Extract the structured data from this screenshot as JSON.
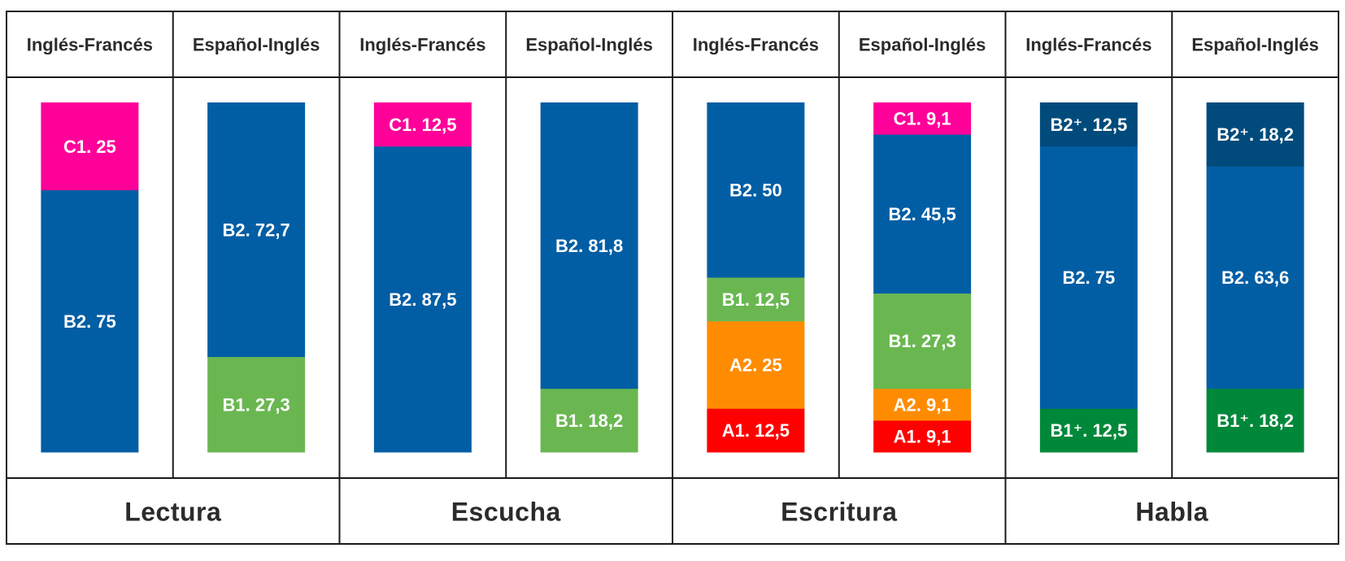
{
  "chart_data": {
    "type": "bar",
    "stacked": true,
    "unit": "%",
    "groups": [
      {
        "name": "Lectura",
        "bars": [
          {
            "name": "Inglés-Francés",
            "segments": [
              {
                "level": "B2",
                "value": 75,
                "label": "B2. 75"
              },
              {
                "level": "C1",
                "value": 25,
                "label": "C1. 25"
              }
            ]
          },
          {
            "name": "Español-Inglés",
            "segments": [
              {
                "level": "B1",
                "value": 27.3,
                "label": "B1. 27,3"
              },
              {
                "level": "B2",
                "value": 72.7,
                "label": "B2. 72,7"
              }
            ]
          }
        ]
      },
      {
        "name": "Escucha",
        "bars": [
          {
            "name": "Inglés-Francés",
            "segments": [
              {
                "level": "B2",
                "value": 87.5,
                "label": "B2. 87,5"
              },
              {
                "level": "C1",
                "value": 12.5,
                "label": "C1. 12,5"
              }
            ]
          },
          {
            "name": "Español-Inglés",
            "segments": [
              {
                "level": "B1",
                "value": 18.2,
                "label": "B1. 18,2"
              },
              {
                "level": "B2",
                "value": 81.8,
                "label": "B2. 81,8"
              }
            ]
          }
        ]
      },
      {
        "name": "Escritura",
        "bars": [
          {
            "name": "Inglés-Francés",
            "segments": [
              {
                "level": "A1",
                "value": 12.5,
                "label": "A1. 12,5"
              },
              {
                "level": "A2",
                "value": 25,
                "label": "A2. 25"
              },
              {
                "level": "B1",
                "value": 12.5,
                "label": "B1. 12,5"
              },
              {
                "level": "B2",
                "value": 50,
                "label": "B2. 50"
              }
            ]
          },
          {
            "name": "Español-Inglés",
            "segments": [
              {
                "level": "A1",
                "value": 9.1,
                "label": "A1. 9,1"
              },
              {
                "level": "A2",
                "value": 9.1,
                "label": "A2. 9,1"
              },
              {
                "level": "B1",
                "value": 27.3,
                "label": "B1. 27,3"
              },
              {
                "level": "B2",
                "value": 45.5,
                "label": "B2. 45,5"
              },
              {
                "level": "C1",
                "value": 9.1,
                "label": "C1. 9,1"
              }
            ]
          }
        ]
      },
      {
        "name": "Habla",
        "bars": [
          {
            "name": "Inglés-Francés",
            "segments": [
              {
                "level": "B1+",
                "value": 12.5,
                "label": "B1⁺. 12,5"
              },
              {
                "level": "B2",
                "value": 75,
                "label": "B2. 75"
              },
              {
                "level": "B2+",
                "value": 12.5,
                "label": "B2⁺. 12,5"
              }
            ]
          },
          {
            "name": "Español-Inglés",
            "segments": [
              {
                "level": "B1+",
                "value": 18.2,
                "label": "B1⁺. 18,2"
              },
              {
                "level": "B2",
                "value": 63.6,
                "label": "B2. 63,6"
              },
              {
                "level": "B2+",
                "value": 18.2,
                "label": "B2⁺. 18,2"
              }
            ]
          }
        ]
      }
    ],
    "colors": {
      "A1": "#fe0000",
      "A2": "#ff8c00",
      "B1": "#6ab751",
      "B1+": "#00883a",
      "B2": "#025ea4",
      "B2+": "#004b7c",
      "C1": "#ff0199"
    }
  }
}
